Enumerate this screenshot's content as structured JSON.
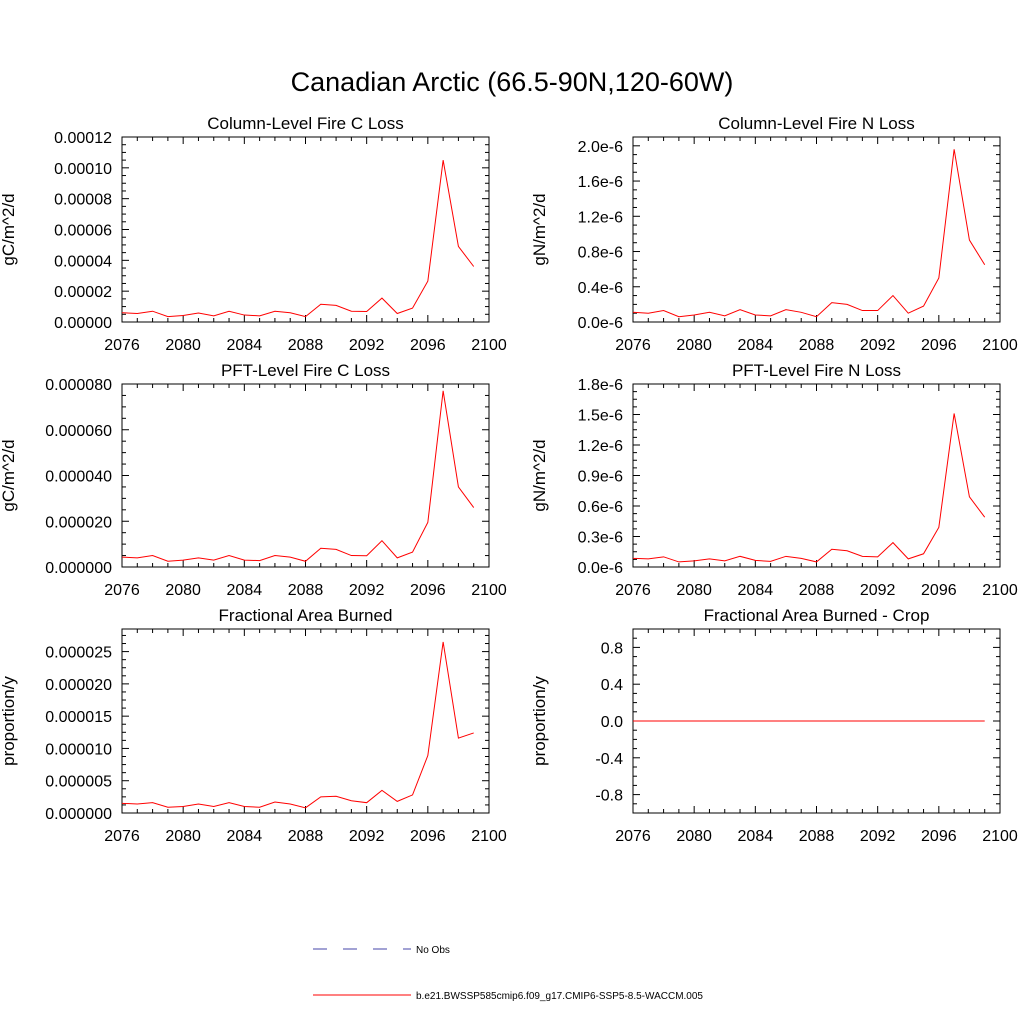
{
  "figure": {
    "title": "Canadian Arctic (66.5-90N,120-60W)"
  },
  "legend": {
    "entries": [
      {
        "label": "No Obs",
        "style": "dashed",
        "color": "#4444aa"
      },
      {
        "label": "b.e21.BWSSP585cmip6.f09_g17.CMIP6-SSP5-8.5-WACCM.005",
        "style": "solid",
        "color": "#ff0000"
      }
    ]
  },
  "colors": {
    "series": "#ff0000",
    "axis": "#000000",
    "background": "#ffffff"
  },
  "chart_data": [
    {
      "type": "line",
      "title": "Column-Level Fire C Loss",
      "xlabel": "",
      "ylabel": "gC/m^2/d",
      "xlim": [
        2076,
        2100
      ],
      "ylim": [
        0,
        0.00012
      ],
      "xticks": [
        "2076",
        "2080",
        "2084",
        "2088",
        "2092",
        "2096",
        "2100"
      ],
      "yticks": [
        {
          "v": 0,
          "label": "0.00000"
        },
        {
          "v": 2e-05,
          "label": "0.00002"
        },
        {
          "v": 4e-05,
          "label": "0.00004"
        },
        {
          "v": 6e-05,
          "label": "0.00006"
        },
        {
          "v": 8e-05,
          "label": "0.00008"
        },
        {
          "v": 0.0001,
          "label": "0.00010"
        },
        {
          "v": 0.00012,
          "label": "0.00012"
        }
      ],
      "x": [
        2076,
        2077,
        2078,
        2079,
        2080,
        2081,
        2082,
        2083,
        2084,
        2085,
        2086,
        2087,
        2088,
        2089,
        2090,
        2091,
        2092,
        2093,
        2094,
        2095,
        2096,
        2097,
        2098,
        2099
      ],
      "series": [
        {
          "color": "#ff0000",
          "values": [
            6e-06,
            5.5e-06,
            7e-06,
            3.5e-06,
            4.2e-06,
            5.8e-06,
            4e-06,
            7e-06,
            4.5e-06,
            4e-06,
            7e-06,
            6e-06,
            3.5e-06,
            1.15e-05,
            1.08e-05,
            7e-06,
            6.8e-06,
            1.55e-05,
            5.5e-06,
            9e-06,
            2.65e-05,
            0.000105,
            4.9e-05,
            3.6e-05
          ]
        }
      ]
    },
    {
      "type": "line",
      "title": "Column-Level Fire N Loss",
      "xlabel": "",
      "ylabel": "gN/m^2/d",
      "xlim": [
        2076,
        2100
      ],
      "ylim": [
        0,
        2.1e-06
      ],
      "xticks": [
        "2076",
        "2080",
        "2084",
        "2088",
        "2092",
        "2096",
        "2100"
      ],
      "yticks": [
        {
          "v": 0,
          "label": "0.0e-6"
        },
        {
          "v": 4e-07,
          "label": "0.4e-6"
        },
        {
          "v": 8e-07,
          "label": "0.8e-6"
        },
        {
          "v": 1.2e-06,
          "label": "1.2e-6"
        },
        {
          "v": 1.6e-06,
          "label": "1.6e-6"
        },
        {
          "v": 2e-06,
          "label": "2.0e-6"
        }
      ],
      "x": [
        2076,
        2077,
        2078,
        2079,
        2080,
        2081,
        2082,
        2083,
        2084,
        2085,
        2086,
        2087,
        2088,
        2089,
        2090,
        2091,
        2092,
        2093,
        2094,
        2095,
        2096,
        2097,
        2098,
        2099
      ],
      "series": [
        {
          "color": "#ff0000",
          "values": [
            1.1e-07,
            1e-07,
            1.3e-07,
            6e-08,
            8e-08,
            1.1e-07,
            7e-08,
            1.4e-07,
            8e-08,
            7e-08,
            1.4e-07,
            1.1e-07,
            6e-08,
            2.2e-07,
            2e-07,
            1.3e-07,
            1.3e-07,
            3e-07,
            1e-07,
            1.8e-07,
            5e-07,
            1.96e-06,
            9.3e-07,
            6.5e-07
          ]
        }
      ]
    },
    {
      "type": "line",
      "title": "PFT-Level Fire C Loss",
      "xlabel": "",
      "ylabel": "gC/m^2/d",
      "xlim": [
        2076,
        2100
      ],
      "ylim": [
        0,
        8e-05
      ],
      "xticks": [
        "2076",
        "2080",
        "2084",
        "2088",
        "2092",
        "2096",
        "2100"
      ],
      "yticks": [
        {
          "v": 0,
          "label": "0.000000"
        },
        {
          "v": 2e-05,
          "label": "0.000020"
        },
        {
          "v": 4e-05,
          "label": "0.000040"
        },
        {
          "v": 6e-05,
          "label": "0.000060"
        },
        {
          "v": 8e-05,
          "label": "0.000080"
        }
      ],
      "x": [
        2076,
        2077,
        2078,
        2079,
        2080,
        2081,
        2082,
        2083,
        2084,
        2085,
        2086,
        2087,
        2088,
        2089,
        2090,
        2091,
        2092,
        2093,
        2094,
        2095,
        2096,
        2097,
        2098,
        2099
      ],
      "series": [
        {
          "color": "#ff0000",
          "values": [
            4.3e-06,
            4e-06,
            5e-06,
            2.5e-06,
            3e-06,
            4e-06,
            3e-06,
            5e-06,
            3e-06,
            2.8e-06,
            5e-06,
            4.3e-06,
            2.5e-06,
            8.2e-06,
            7.7e-06,
            5e-06,
            4.9e-06,
            1.15e-05,
            4e-06,
            6.5e-06,
            1.95e-05,
            7.7e-05,
            3.5e-05,
            2.6e-05
          ]
        }
      ]
    },
    {
      "type": "line",
      "title": "PFT-Level Fire N Loss",
      "xlabel": "",
      "ylabel": "gN/m^2/d",
      "xlim": [
        2076,
        2100
      ],
      "ylim": [
        0,
        1.8e-06
      ],
      "xticks": [
        "2076",
        "2080",
        "2084",
        "2088",
        "2092",
        "2096",
        "2100"
      ],
      "yticks": [
        {
          "v": 0,
          "label": "0.0e-6"
        },
        {
          "v": 3e-07,
          "label": "0.3e-6"
        },
        {
          "v": 6e-07,
          "label": "0.6e-6"
        },
        {
          "v": 9e-07,
          "label": "0.9e-6"
        },
        {
          "v": 1.2e-06,
          "label": "1.2e-6"
        },
        {
          "v": 1.5e-06,
          "label": "1.5e-6"
        },
        {
          "v": 1.8e-06,
          "label": "1.8e-6"
        }
      ],
      "x": [
        2076,
        2077,
        2078,
        2079,
        2080,
        2081,
        2082,
        2083,
        2084,
        2085,
        2086,
        2087,
        2088,
        2089,
        2090,
        2091,
        2092,
        2093,
        2094,
        2095,
        2096,
        2097,
        2098,
        2099
      ],
      "series": [
        {
          "color": "#ff0000",
          "values": [
            8.5e-08,
            8e-08,
            1e-07,
            5e-08,
            6e-08,
            8e-08,
            6e-08,
            1.05e-07,
            6.5e-08,
            5.5e-08,
            1.05e-07,
            8.5e-08,
            5e-08,
            1.75e-07,
            1.6e-07,
            1.05e-07,
            1e-07,
            2.4e-07,
            8e-08,
            1.3e-07,
            3.9e-07,
            1.51e-06,
            6.9e-07,
            4.9e-07
          ]
        }
      ]
    },
    {
      "type": "line",
      "title": "Fractional Area Burned",
      "xlabel": "",
      "ylabel": "proportion/y",
      "xlim": [
        2076,
        2100
      ],
      "ylim": [
        0,
        2.85e-05
      ],
      "xticks": [
        "2076",
        "2080",
        "2084",
        "2088",
        "2092",
        "2096",
        "2100"
      ],
      "yticks": [
        {
          "v": 0,
          "label": "0.000000"
        },
        {
          "v": 5e-06,
          "label": "0.000005"
        },
        {
          "v": 1e-05,
          "label": "0.000010"
        },
        {
          "v": 1.5e-05,
          "label": "0.000015"
        },
        {
          "v": 2e-05,
          "label": "0.000020"
        },
        {
          "v": 2.5e-05,
          "label": "0.000025"
        }
      ],
      "x": [
        2076,
        2077,
        2078,
        2079,
        2080,
        2081,
        2082,
        2083,
        2084,
        2085,
        2086,
        2087,
        2088,
        2089,
        2090,
        2091,
        2092,
        2093,
        2094,
        2095,
        2096,
        2097,
        2098,
        2099
      ],
      "series": [
        {
          "color": "#ff0000",
          "values": [
            1.5e-06,
            1.4e-06,
            1.6e-06,
            9e-07,
            1e-06,
            1.4e-06,
            1e-06,
            1.6e-06,
            1e-06,
            9e-07,
            1.7e-06,
            1.4e-06,
            8e-07,
            2.5e-06,
            2.6e-06,
            1.9e-06,
            1.6e-06,
            3.5e-06,
            1.8e-06,
            2.8e-06,
            8.9e-06,
            2.65e-05,
            1.16e-05,
            1.24e-05
          ]
        }
      ]
    },
    {
      "type": "line",
      "title": "Fractional Area Burned - Crop",
      "xlabel": "",
      "ylabel": "proportion/y",
      "xlim": [
        2076,
        2100
      ],
      "ylim": [
        -1.0,
        1.0
      ],
      "xticks": [
        "2076",
        "2080",
        "2084",
        "2088",
        "2092",
        "2096",
        "2100"
      ],
      "yticks": [
        {
          "v": -0.8,
          "label": "-0.8"
        },
        {
          "v": -0.4,
          "label": "-0.4"
        },
        {
          "v": 0,
          "label": "0.0"
        },
        {
          "v": 0.4,
          "label": "0.4"
        },
        {
          "v": 0.8,
          "label": "0.8"
        }
      ],
      "x": [
        2076,
        2077,
        2078,
        2079,
        2080,
        2081,
        2082,
        2083,
        2084,
        2085,
        2086,
        2087,
        2088,
        2089,
        2090,
        2091,
        2092,
        2093,
        2094,
        2095,
        2096,
        2097,
        2098,
        2099
      ],
      "series": [
        {
          "color": "#ff0000",
          "values": [
            0,
            0,
            0,
            0,
            0,
            0,
            0,
            0,
            0,
            0,
            0,
            0,
            0,
            0,
            0,
            0,
            0,
            0,
            0,
            0,
            0,
            0,
            0,
            0
          ]
        }
      ]
    }
  ]
}
